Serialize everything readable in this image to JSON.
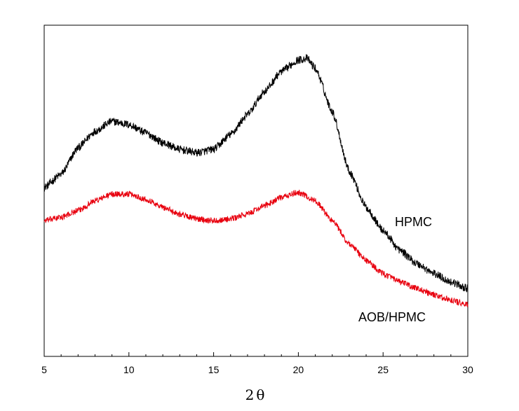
{
  "chart_data": {
    "type": "line",
    "title": "",
    "xlabel": "2θ",
    "ylabel": "",
    "xlim": [
      5,
      30
    ],
    "ylim": [
      0,
      1
    ],
    "grid": false,
    "x_ticks": [
      {
        "value": 5,
        "label": "5"
      },
      {
        "value": 10,
        "label": "10"
      },
      {
        "value": 15,
        "label": "15"
      },
      {
        "value": 20,
        "label": "20"
      },
      {
        "value": 25,
        "label": "25"
      },
      {
        "value": 30,
        "label": "30"
      }
    ],
    "x_minor_step": 1,
    "series": [
      {
        "name": "HPMC",
        "label": "HPMC",
        "color": "#000000",
        "noise": 0.012,
        "x": [
          5,
          6,
          7,
          8,
          9,
          10,
          11,
          12,
          13,
          14,
          15,
          16,
          17,
          18,
          19,
          20,
          20.5,
          21,
          22,
          23,
          24,
          25,
          26,
          27,
          28,
          29,
          30
        ],
        "values": [
          0.51,
          0.55,
          0.63,
          0.68,
          0.71,
          0.7,
          0.675,
          0.645,
          0.625,
          0.615,
          0.625,
          0.67,
          0.73,
          0.8,
          0.86,
          0.895,
          0.9,
          0.87,
          0.74,
          0.56,
          0.45,
          0.38,
          0.32,
          0.28,
          0.25,
          0.225,
          0.205
        ]
      },
      {
        "name": "AOB/HPMC",
        "label": "AOB/HPMC",
        "color": "#e8000e",
        "noise": 0.009,
        "x": [
          5,
          6,
          7,
          8,
          9,
          10,
          11,
          12,
          13,
          14,
          15,
          16,
          17,
          18,
          19,
          20,
          21,
          22,
          23,
          24,
          25,
          26,
          27,
          28,
          29,
          30
        ],
        "values": [
          0.41,
          0.42,
          0.44,
          0.47,
          0.49,
          0.49,
          0.475,
          0.45,
          0.43,
          0.415,
          0.41,
          0.415,
          0.43,
          0.455,
          0.48,
          0.495,
          0.47,
          0.41,
          0.34,
          0.29,
          0.25,
          0.225,
          0.205,
          0.185,
          0.17,
          0.155
        ]
      }
    ]
  }
}
